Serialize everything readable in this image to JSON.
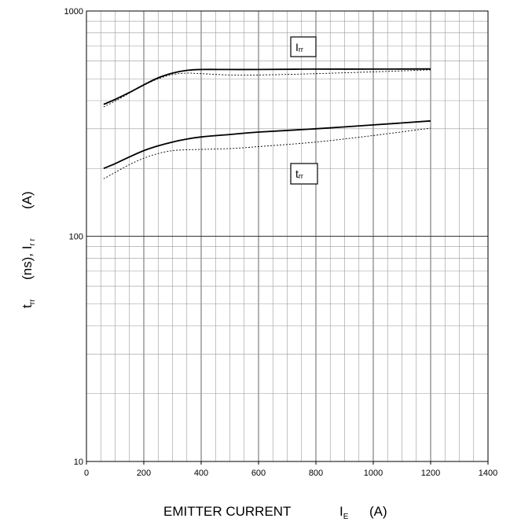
{
  "chart_data": {
    "type": "line",
    "x_axis": {
      "label_main": "EMITTER CURRENT",
      "label_symbol": "I",
      "label_symbol_sub": "E",
      "label_unit": "(A)",
      "range": [
        0,
        1400
      ],
      "ticks": [
        0,
        200,
        400,
        600,
        800,
        1000,
        1200,
        1400
      ],
      "tick_labels": [
        "0",
        "200",
        "400",
        "600",
        "800",
        "1000",
        "1200",
        "1400"
      ]
    },
    "y_axis": {
      "scale": "log",
      "range": [
        10,
        1000
      ],
      "ticks": [
        10,
        100,
        1000
      ],
      "tick_labels": [
        "10",
        "100",
        "1000"
      ],
      "label_t": "t",
      "label_t_sub": "rr",
      "label_mid": "(ns), I",
      "label_i_sub": "r r",
      "label_unit": "(A)"
    },
    "grid": true,
    "series": [
      {
        "name_main": "I",
        "name_sub": "rr",
        "style": "solid",
        "x": [
          60,
          100,
          150,
          200,
          250,
          300,
          350,
          400,
          500,
          600,
          800,
          1000,
          1200
        ],
        "y": [
          385,
          405,
          435,
          470,
          505,
          530,
          545,
          550,
          550,
          550,
          552,
          552,
          553
        ]
      },
      {
        "name_main": "I",
        "name_sub": "rr",
        "style": "dotted",
        "x": [
          60,
          100,
          150,
          200,
          250,
          300,
          350,
          400,
          500,
          600,
          800,
          1000,
          1200
        ],
        "y": [
          375,
          398,
          432,
          468,
          500,
          522,
          530,
          527,
          520,
          520,
          527,
          537,
          548
        ]
      },
      {
        "name_main": "t",
        "name_sub": "rr",
        "style": "solid",
        "x": [
          60,
          100,
          150,
          200,
          250,
          300,
          350,
          400,
          500,
          600,
          800,
          1000,
          1200
        ],
        "y": [
          200,
          210,
          225,
          240,
          252,
          262,
          270,
          276,
          283,
          290,
          300,
          312,
          325
        ]
      },
      {
        "name_main": "t",
        "name_sub": "rr",
        "style": "dotted",
        "x": [
          60,
          100,
          150,
          200,
          250,
          300,
          350,
          400,
          500,
          600,
          800,
          1000,
          1200
        ],
        "y": [
          180,
          192,
          208,
          222,
          233,
          240,
          242,
          243,
          245,
          250,
          262,
          280,
          302
        ]
      }
    ]
  }
}
